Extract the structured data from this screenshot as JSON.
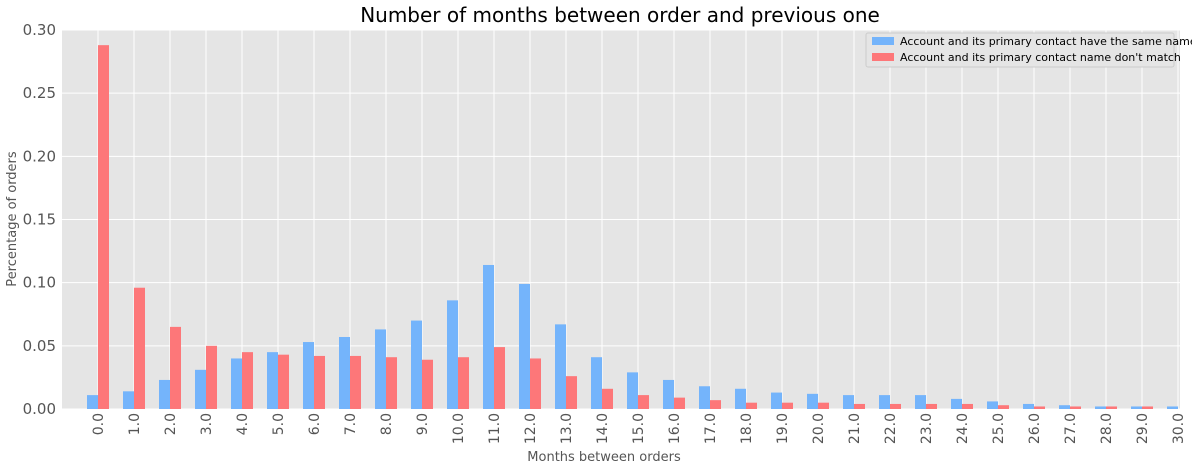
{
  "chart_data": {
    "type": "bar",
    "title": "Number of months between order and previous one",
    "xlabel": "Months between orders",
    "ylabel": "Percentage of orders",
    "ylim": [
      0,
      0.3
    ],
    "yticks": [
      "0.00",
      "0.05",
      "0.10",
      "0.15",
      "0.20",
      "0.25",
      "0.30"
    ],
    "ytick_values": [
      0,
      0.05,
      0.1,
      0.15,
      0.2,
      0.25,
      0.3
    ],
    "grid": true,
    "legend_position": "top-right",
    "categories": [
      "0.0",
      "1.0",
      "2.0",
      "3.0",
      "4.0",
      "5.0",
      "6.0",
      "7.0",
      "8.0",
      "9.0",
      "10.0",
      "11.0",
      "12.0",
      "13.0",
      "14.0",
      "15.0",
      "16.0",
      "17.0",
      "18.0",
      "19.0",
      "20.0",
      "21.0",
      "22.0",
      "23.0",
      "24.0",
      "25.0",
      "26.0",
      "27.0",
      "28.0",
      "29.0",
      "30.0"
    ],
    "series": [
      {
        "name": "Account and its primary contact have the same name",
        "color": "#74b4fb",
        "values": [
          0.011,
          0.014,
          0.023,
          0.031,
          0.04,
          0.045,
          0.053,
          0.057,
          0.063,
          0.07,
          0.086,
          0.114,
          0.099,
          0.067,
          0.041,
          0.029,
          0.023,
          0.018,
          0.016,
          0.013,
          0.012,
          0.011,
          0.011,
          0.011,
          0.008,
          0.006,
          0.004,
          0.003,
          0.002,
          0.002,
          0.002
        ]
      },
      {
        "name": "Account and its primary contact name don't match",
        "color": "#fd7779",
        "values": [
          0.288,
          0.096,
          0.065,
          0.05,
          0.045,
          0.043,
          0.042,
          0.042,
          0.041,
          0.039,
          0.041,
          0.049,
          0.04,
          0.026,
          0.016,
          0.011,
          0.009,
          0.007,
          0.005,
          0.005,
          0.005,
          0.004,
          0.004,
          0.004,
          0.004,
          0.003,
          0.002,
          0.002,
          0.002,
          0.002,
          0
        ]
      }
    ]
  }
}
